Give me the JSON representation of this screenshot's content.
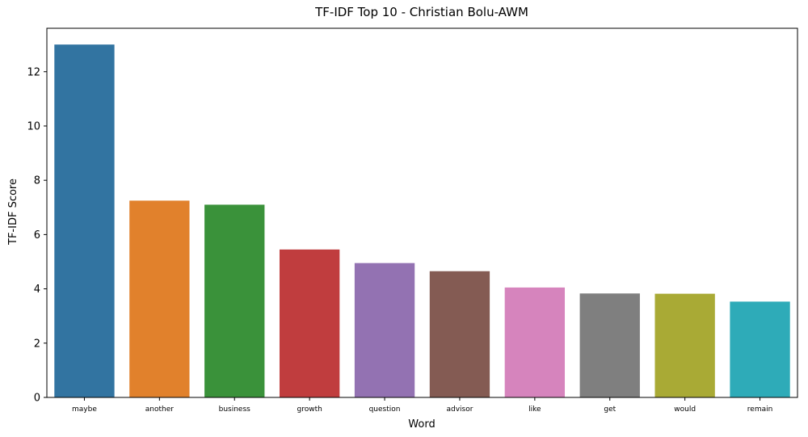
{
  "chart_data": {
    "type": "bar",
    "title": "TF-IDF Top 10 - Christian Bolu-AWM",
    "xlabel": "Word",
    "ylabel": "TF-IDF Score",
    "categories": [
      "maybe",
      "another",
      "business",
      "growth",
      "question",
      "advisor",
      "like",
      "get",
      "would",
      "remain"
    ],
    "values": [
      13.0,
      7.25,
      7.1,
      5.45,
      4.95,
      4.65,
      4.05,
      3.83,
      3.82,
      3.53
    ],
    "colors": [
      "#3274a1",
      "#e1812c",
      "#3a923a",
      "#c03d3e",
      "#9372b2",
      "#845b53",
      "#d684bd",
      "#7f7f7f",
      "#a9aa35",
      "#2eabb8"
    ],
    "ylim": [
      0,
      13.6
    ],
    "yticks": [
      0,
      2,
      4,
      6,
      8,
      10,
      12
    ],
    "grid": false,
    "legend": "none"
  }
}
